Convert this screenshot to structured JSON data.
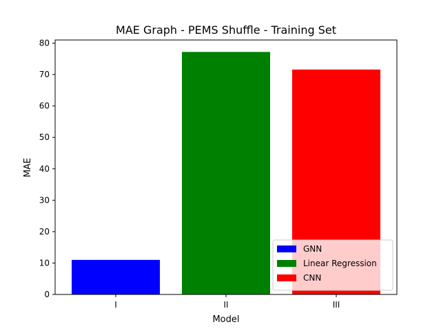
{
  "chart_data": {
    "type": "bar",
    "title": "MAE Graph - PEMS Shuffle - Training Set",
    "xlabel": "Model",
    "ylabel": "MAE",
    "categories": [
      "I",
      "II",
      "III"
    ],
    "values": [
      11.0,
      77.2,
      71.6
    ],
    "colors": [
      "#0000ff",
      "#008000",
      "#ff0000"
    ],
    "ylim": [
      0,
      81
    ],
    "yticks": [
      0,
      10,
      20,
      30,
      40,
      50,
      60,
      70,
      80
    ],
    "grid": false,
    "legend": {
      "position": "lower-right",
      "entries": [
        {
          "label": "GNN",
          "color": "#0000ff"
        },
        {
          "label": "Linear Regression",
          "color": "#008000"
        },
        {
          "label": "CNN",
          "color": "#ff0000"
        }
      ]
    }
  }
}
